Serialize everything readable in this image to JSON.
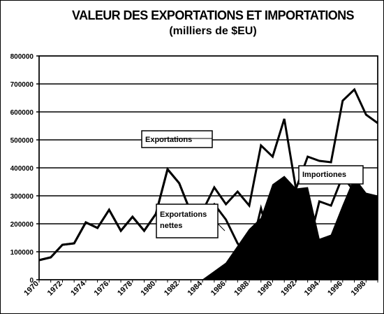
{
  "chart_data": {
    "type": "area",
    "title": "VALEUR DES EXPORTATIONS ET IMPORTATIONS",
    "subtitle": "(milliers de $EU)",
    "xlim": [
      1970,
      1999
    ],
    "ylim": [
      0,
      800000
    ],
    "y_ticks": [
      "0",
      "100000",
      "200000",
      "300000",
      "400000",
      "500000",
      "600000",
      "700000",
      "800000"
    ],
    "x_ticks": [
      "1970",
      "1972",
      "1974",
      "1976",
      "1978",
      "1980",
      "1982",
      "1984",
      "1986",
      "1988",
      "1990",
      "1992",
      "1994",
      "1996",
      "1998"
    ],
    "grid": true,
    "x": [
      1970,
      1971,
      1972,
      1973,
      1974,
      1975,
      1976,
      1977,
      1978,
      1979,
      1980,
      1981,
      1982,
      1983,
      1984,
      1985,
      1986,
      1987,
      1988,
      1989,
      1990,
      1991,
      1992,
      1993,
      1994,
      1995,
      1996,
      1997,
      1998,
      1999
    ],
    "series": [
      {
        "name": "Exportations",
        "style": "line",
        "values": [
          70000,
          80000,
          125000,
          130000,
          205000,
          185000,
          250000,
          175000,
          225000,
          175000,
          235000,
          395000,
          345000,
          240000,
          245000,
          330000,
          270000,
          315000,
          265000,
          480000,
          440000,
          575000,
          325000,
          440000,
          425000,
          420000,
          640000,
          680000,
          590000,
          560000
        ]
      },
      {
        "name": "Importiones",
        "style": "line",
        "values": [
          70000,
          80000,
          125000,
          130000,
          205000,
          185000,
          250000,
          175000,
          225000,
          175000,
          235000,
          395000,
          345000,
          240000,
          230000,
          270000,
          215000,
          130000,
          80000,
          255000,
          105000,
          200000,
          0,
          110000,
          280000,
          265000,
          370000,
          315000,
          275000,
          260000
        ]
      },
      {
        "name": "Exportations nettes",
        "style": "filled-area",
        "values": [
          0,
          0,
          0,
          0,
          0,
          0,
          0,
          0,
          0,
          0,
          0,
          0,
          0,
          0,
          0,
          30000,
          60000,
          120000,
          180000,
          220000,
          340000,
          370000,
          325000,
          330000,
          145000,
          160000,
          265000,
          365000,
          310000,
          300000
        ]
      }
    ],
    "annotations": [
      {
        "text": "Exportations",
        "series": "Exportations"
      },
      {
        "text": "Importiones",
        "series": "Importiones"
      },
      {
        "text": "Exportations nettes",
        "series": "Exportations nettes"
      }
    ],
    "colors": {
      "line": "#000000",
      "fill": "#000000",
      "background": "#ffffff"
    }
  }
}
